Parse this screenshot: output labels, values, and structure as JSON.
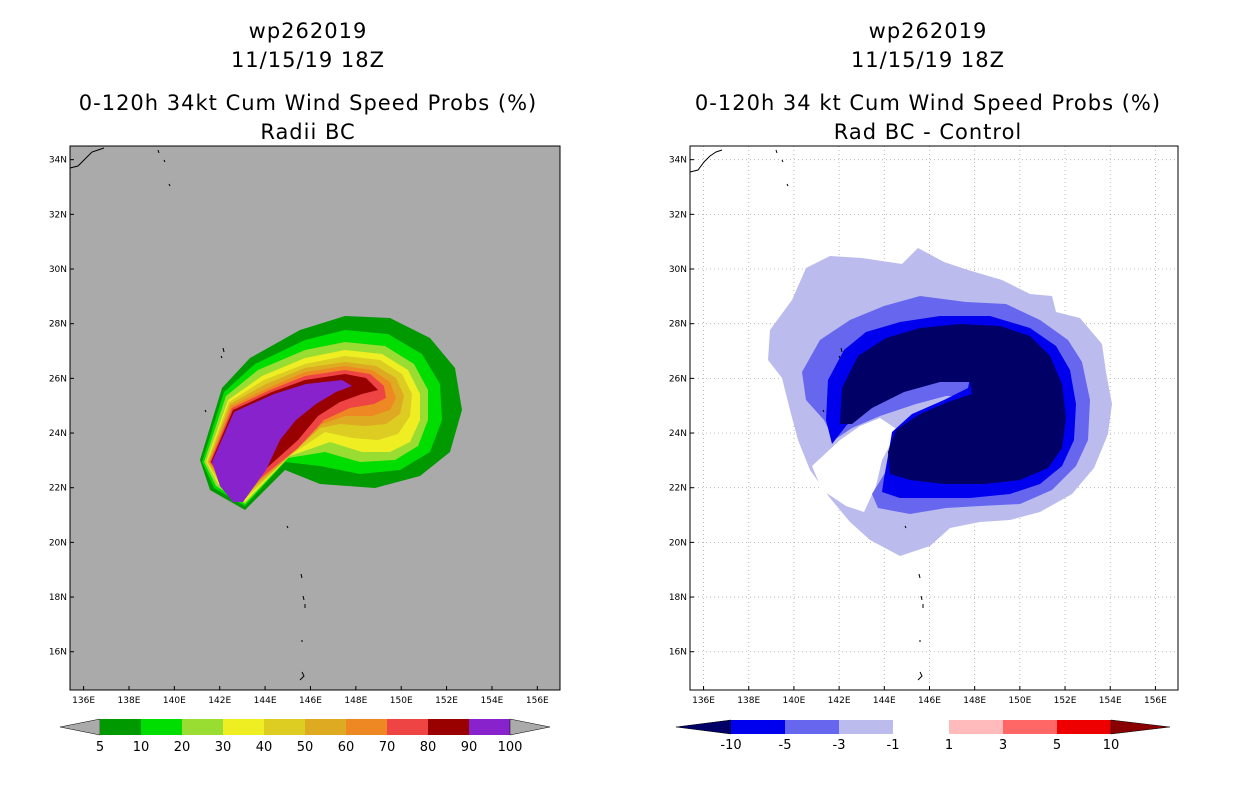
{
  "left_panel": {
    "storm": "wp262019",
    "datetime": "11/15/19 18Z",
    "title": "0-120h 34kt Cum Wind Speed Probs (%)",
    "subtitle": "Radii BC",
    "lon_ticks": [
      "136E",
      "138E",
      "140E",
      "142E",
      "144E",
      "146E",
      "148E",
      "150E",
      "152E",
      "154E",
      "156E"
    ],
    "lat_ticks": [
      "34N",
      "32N",
      "30N",
      "28N",
      "26N",
      "24N",
      "22N",
      "20N",
      "18N",
      "16N"
    ],
    "colorbar_labels": [
      "5",
      "10",
      "20",
      "30",
      "40",
      "50",
      "60",
      "70",
      "80",
      "90",
      "100"
    ],
    "colors": {
      "background": "#aaaaaa",
      "c5": "#009900",
      "c10": "#00dd00",
      "c20": "#99dd33",
      "c30": "#eeee22",
      "c40": "#ddcc22",
      "c50": "#ddaa22",
      "c60": "#ee8822",
      "c70": "#ee4444",
      "c80": "#990000",
      "c90": "#8822cc"
    }
  },
  "right_panel": {
    "storm": "wp262019",
    "datetime": "11/15/19 18Z",
    "title": "0-120h 34 kt Cum Wind Speed Probs (%)",
    "subtitle": "Rad BC - Control",
    "lon_ticks": [
      "136E",
      "138E",
      "140E",
      "142E",
      "144E",
      "146E",
      "148E",
      "150E",
      "152E",
      "154E",
      "156E"
    ],
    "lat_ticks": [
      "34N",
      "32N",
      "30N",
      "28N",
      "26N",
      "24N",
      "22N",
      "20N",
      "18N",
      "16N"
    ],
    "colorbar_labels": [
      "-10",
      "-5",
      "-3",
      "-1",
      "1",
      "3",
      "5",
      "10"
    ],
    "colors": {
      "background": "#ffffff",
      "n10": "#000066",
      "n5": "#0000ee",
      "n3": "#6666ee",
      "n1": "#bbbbee",
      "p1": "#ffffff",
      "p3": "#ffbbbb",
      "p5": "#ff6666",
      "p10": "#ee0000",
      "p99": "#880000"
    }
  }
}
